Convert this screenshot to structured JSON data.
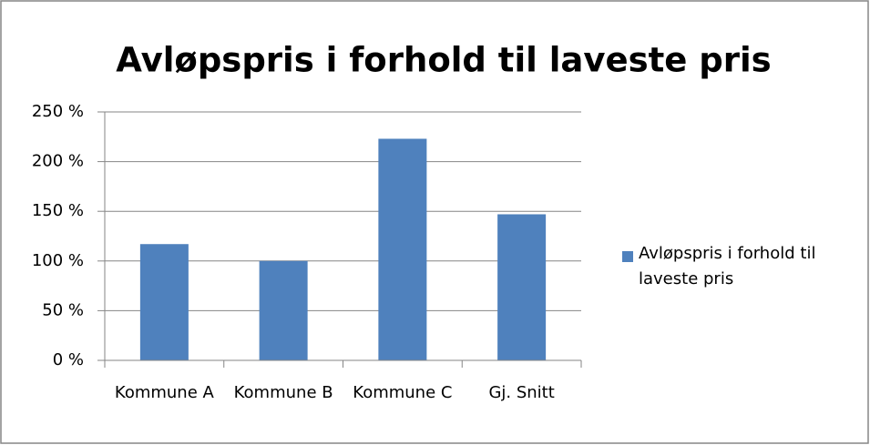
{
  "chart_data": {
    "type": "bar",
    "title": "Avløpspris i forhold til laveste pris",
    "categories": [
      "Kommune A",
      "Kommune B",
      "Kommune C",
      "Gj. Snitt"
    ],
    "series": [
      {
        "name": "Avløpspris i forhold til laveste pris",
        "color": "#4f81bd",
        "values": [
          117,
          100,
          223,
          147
        ]
      }
    ],
    "ylim": [
      0,
      250
    ],
    "yticks": [
      {
        "value": 0,
        "label": "0 %"
      },
      {
        "value": 50,
        "label": "50 %"
      },
      {
        "value": 100,
        "label": "100 %"
      },
      {
        "value": 150,
        "label": "150 %"
      },
      {
        "value": 200,
        "label": "200 %"
      },
      {
        "value": 250,
        "label": "250 %"
      }
    ],
    "grid": true,
    "legend": "right"
  }
}
